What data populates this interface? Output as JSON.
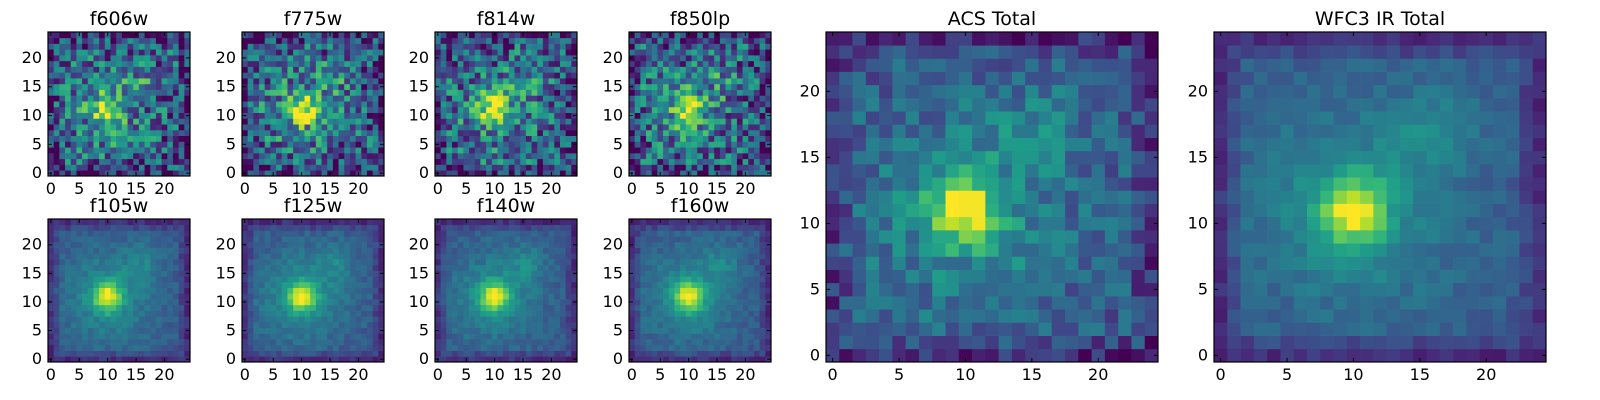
{
  "figure": {
    "colormap": "viridis",
    "colors": {
      "low": "#440154",
      "mid": "#21918c",
      "high": "#fde725",
      "frame": "#000000",
      "background": "#ffffff"
    }
  },
  "chart_data": [
    {
      "type": "heatmap",
      "title": "f606w",
      "xlabel": "",
      "ylabel": "",
      "xlim": [
        0,
        24
      ],
      "ylim": [
        0,
        24
      ],
      "xticks": [
        0,
        5,
        10,
        15,
        20
      ],
      "yticks": [
        0,
        5,
        10,
        15,
        20
      ],
      "grid": false,
      "image_size": [
        25,
        25
      ],
      "peak": [
        10,
        11
      ],
      "character": "noisy"
    },
    {
      "type": "heatmap",
      "title": "f775w",
      "xlabel": "",
      "ylabel": "",
      "xlim": [
        0,
        24
      ],
      "ylim": [
        0,
        24
      ],
      "xticks": [
        0,
        5,
        10,
        15,
        20
      ],
      "yticks": [
        0,
        5,
        10,
        15,
        20
      ],
      "grid": false,
      "image_size": [
        25,
        25
      ],
      "peak": [
        10,
        11
      ],
      "character": "noisy"
    },
    {
      "type": "heatmap",
      "title": "f814w",
      "xlabel": "",
      "ylabel": "",
      "xlim": [
        0,
        24
      ],
      "ylim": [
        0,
        24
      ],
      "xticks": [
        0,
        5,
        10,
        15,
        20
      ],
      "yticks": [
        0,
        5,
        10,
        15,
        20
      ],
      "grid": false,
      "image_size": [
        25,
        25
      ],
      "peak": [
        10,
        11
      ],
      "character": "noisy"
    },
    {
      "type": "heatmap",
      "title": "f850lp",
      "xlabel": "",
      "ylabel": "",
      "xlim": [
        0,
        24
      ],
      "ylim": [
        0,
        24
      ],
      "xticks": [
        0,
        5,
        10,
        15,
        20
      ],
      "yticks": [
        0,
        5,
        10,
        15,
        20
      ],
      "grid": false,
      "image_size": [
        25,
        25
      ],
      "peak": [
        10,
        11
      ],
      "character": "noisy"
    },
    {
      "type": "heatmap",
      "title": "f105w",
      "xlabel": "",
      "ylabel": "",
      "xlim": [
        0,
        24
      ],
      "ylim": [
        0,
        24
      ],
      "xticks": [
        0,
        5,
        10,
        15,
        20
      ],
      "yticks": [
        0,
        5,
        10,
        15,
        20
      ],
      "grid": false,
      "image_size": [
        25,
        25
      ],
      "peak": [
        10,
        11
      ],
      "character": "smooth"
    },
    {
      "type": "heatmap",
      "title": "f125w",
      "xlabel": "",
      "ylabel": "",
      "xlim": [
        0,
        24
      ],
      "ylim": [
        0,
        24
      ],
      "xticks": [
        0,
        5,
        10,
        15,
        20
      ],
      "yticks": [
        0,
        5,
        10,
        15,
        20
      ],
      "grid": false,
      "image_size": [
        25,
        25
      ],
      "peak": [
        10,
        11
      ],
      "character": "smooth"
    },
    {
      "type": "heatmap",
      "title": "f140w",
      "xlabel": "",
      "ylabel": "",
      "xlim": [
        0,
        24
      ],
      "ylim": [
        0,
        24
      ],
      "xticks": [
        0,
        5,
        10,
        15,
        20
      ],
      "yticks": [
        0,
        5,
        10,
        15,
        20
      ],
      "grid": false,
      "image_size": [
        25,
        25
      ],
      "peak": [
        10,
        11
      ],
      "character": "smooth"
    },
    {
      "type": "heatmap",
      "title": "f160w",
      "xlabel": "",
      "ylabel": "",
      "xlim": [
        0,
        24
      ],
      "ylim": [
        0,
        24
      ],
      "xticks": [
        0,
        5,
        10,
        15,
        20
      ],
      "yticks": [
        0,
        5,
        10,
        15,
        20
      ],
      "grid": false,
      "image_size": [
        25,
        25
      ],
      "peak": [
        10,
        11
      ],
      "character": "smooth"
    },
    {
      "type": "heatmap",
      "title": "ACS Total",
      "xlabel": "",
      "ylabel": "",
      "xlim": [
        0,
        24
      ],
      "ylim": [
        0,
        24
      ],
      "xticks": [
        0,
        5,
        10,
        15,
        20
      ],
      "yticks": [
        0,
        5,
        10,
        15,
        20
      ],
      "grid": false,
      "image_size": [
        25,
        25
      ],
      "peak": [
        10,
        11
      ],
      "character": "medium"
    },
    {
      "type": "heatmap",
      "title": "WFC3 IR Total",
      "xlabel": "",
      "ylabel": "",
      "xlim": [
        0,
        24
      ],
      "ylim": [
        0,
        24
      ],
      "xticks": [
        0,
        5,
        10,
        15,
        20
      ],
      "yticks": [
        0,
        5,
        10,
        15,
        20
      ],
      "grid": false,
      "image_size": [
        25,
        25
      ],
      "peak": [
        10,
        11
      ],
      "character": "smooth"
    }
  ]
}
